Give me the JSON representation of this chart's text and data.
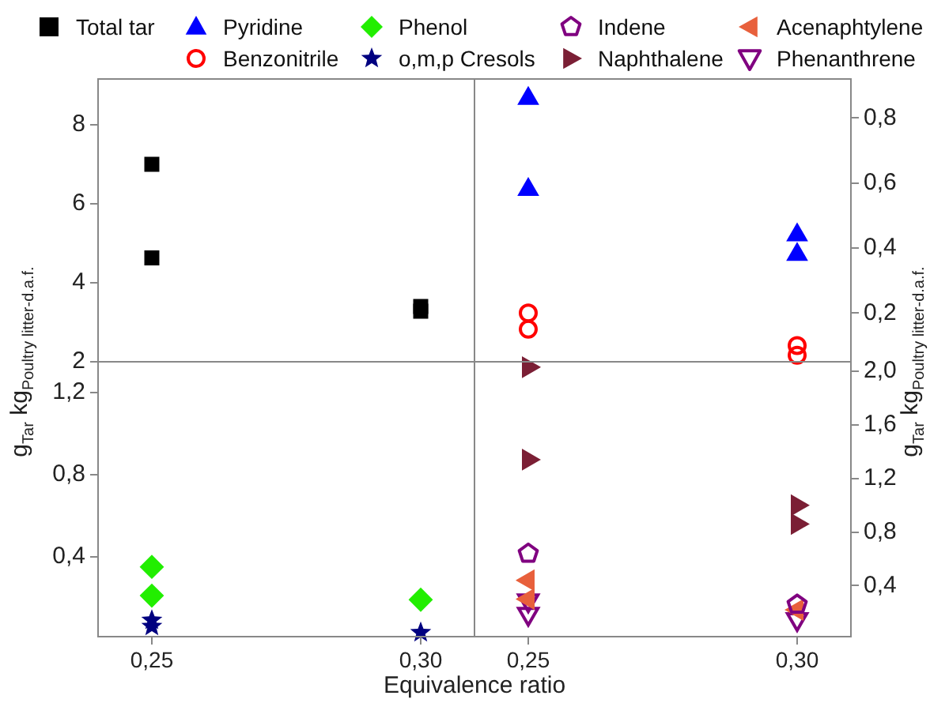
{
  "chart_data": [
    {
      "type": "scatter",
      "ylabel": "g$_{Tar}$ kg$_{Poultry litter-d.a.f.}$",
      "categories": [
        "0,25",
        "0,30"
      ],
      "ylim": [
        2,
        9.16
      ],
      "yticks": [
        2,
        4,
        6,
        8
      ],
      "tick_labels": "y",
      "grid": false,
      "legend": "top",
      "series": [
        {
          "name": "Total tar",
          "color": "#000000",
          "marker": "square",
          "x": [
            "0,25",
            "0,25",
            "0,30",
            "0,30"
          ],
          "values": [
            7.0,
            4.63,
            3.28,
            3.4
          ]
        }
      ]
    },
    {
      "type": "scatter",
      "ylabel": "g$_{Tar}$ kg$_{Poultry litter-d.a.f.}$",
      "categories": [
        "0,25",
        "0,30"
      ],
      "ylim": [
        0.05,
        0.92
      ],
      "yticks": [
        {
          "value": 0.2,
          "label": "0,2"
        },
        {
          "value": 0.4,
          "label": "0,4"
        },
        {
          "value": 0.6,
          "label": "0,6"
        },
        {
          "value": 0.8,
          "label": "0,8"
        }
      ],
      "tick_labels": "y",
      "grid": false,
      "legend": "top",
      "series": [
        {
          "name": "Pyridine",
          "color": "#0000ff",
          "marker": "triangle",
          "x": [
            "0,25",
            "0,25",
            "0,30",
            "0,30"
          ],
          "values": [
            0.86,
            0.58,
            0.44,
            0.38
          ]
        },
        {
          "name": "Benzonitrile",
          "color": "#ff0000",
          "marker": "circle-open",
          "x": [
            "0,25",
            "0,25",
            "0,30",
            "0,30"
          ],
          "values": [
            0.2,
            0.15,
            0.1,
            0.07
          ]
        }
      ]
    },
    {
      "type": "scatter",
      "xlabel": "Equivalence ratio",
      "categories": [
        "0,25",
        "0,30"
      ],
      "ylim": [
        0.01,
        1.35
      ],
      "yticks": [
        {
          "value": 0.4,
          "label": "0,4"
        },
        {
          "value": 0.8,
          "label": "0,8"
        },
        {
          "value": 1.2,
          "label": "1,2"
        }
      ],
      "grid": false,
      "legend": "top",
      "series": [
        {
          "name": "Phenol",
          "color": "#22ee00",
          "marker": "diamond",
          "x": [
            "0,25",
            "0,25",
            "0,30"
          ],
          "values": [
            0.35,
            0.21,
            0.19
          ]
        },
        {
          "name": "o,m,p Cresols",
          "color": "#000080",
          "marker": "star",
          "x": [
            "0,25",
            "0,25",
            "0,30"
          ],
          "values": [
            0.09,
            0.06,
            0.03
          ]
        }
      ]
    },
    {
      "type": "scatter",
      "categories": [
        "0,25",
        "0,30"
      ],
      "ylim": [
        0.02,
        2.07
      ],
      "yticks": [
        {
          "value": 0.4,
          "label": "0,4"
        },
        {
          "value": 0.8,
          "label": "0,8"
        },
        {
          "value": 1.2,
          "label": "1,2"
        },
        {
          "value": 1.6,
          "label": "1,6"
        },
        {
          "value": 2.0,
          "label": "2,0"
        }
      ],
      "grid": false,
      "legend": "top",
      "series": [
        {
          "name": "Indene",
          "color": "#800080",
          "x": [
            "0,25",
            "0,30"
          ],
          "values": [
            0.64,
            0.26
          ]
        },
        {
          "name": "Naphthalene",
          "color": "#7b1f35",
          "marker": "triangle-right",
          "x": [
            "0,25",
            "0,25",
            "0,30",
            "0,30"
          ],
          "values": [
            2.03,
            1.34,
            1.0,
            0.86
          ]
        },
        {
          "name": "Acenaphtylene",
          "color": "#e8603c",
          "marker": "triangle-left",
          "x": [
            "0,25",
            "0,25",
            "0,30"
          ],
          "values": [
            0.44,
            0.3,
            0.22
          ]
        },
        {
          "name": "Phenanthrene",
          "color": "#800080",
          "marker": "triangle-down-open",
          "x": [
            "0,25",
            "0,25",
            "0,30"
          ],
          "values": [
            0.29,
            0.19,
            0.15
          ]
        }
      ]
    }
  ]
}
